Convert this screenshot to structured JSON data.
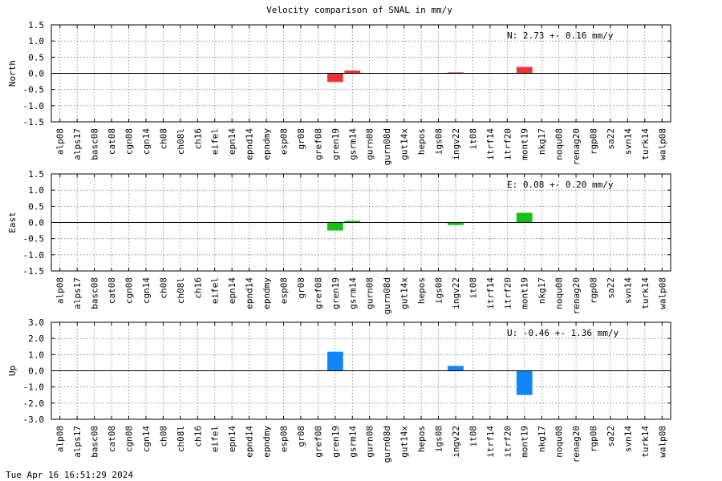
{
  "title": "Velocity comparison of SNAL in mm/y",
  "footer": "Tue Apr 16 16:51:29 2024",
  "chart_data": [
    {
      "type": "bar",
      "ylabel": "North",
      "annotation": "N:   2.73 +-  0.16 mm/y",
      "ylim": [
        -1.5,
        1.5
      ],
      "yticks": [
        "1.5",
        "1.0",
        "0.5",
        "0.0",
        "-0.5",
        "-1.0",
        "-1.5"
      ],
      "grid": true,
      "color": "#e8353a",
      "categories": [
        "alp08",
        "alps17",
        "basc08",
        "cat08",
        "cgn08",
        "cgn14",
        "ch08",
        "ch08l",
        "ch16",
        "eifel",
        "epn14",
        "epnd14",
        "epndmy",
        "esp08",
        "gr08",
        "gref08",
        "gren19",
        "gsrm14",
        "gurn08",
        "gurn08d",
        "gut14x",
        "hepos",
        "igs08",
        "ingv22",
        "it08",
        "itrf14",
        "itrf20",
        "mont19",
        "nkg17",
        "noqu08",
        "renag20",
        "rgp08",
        "sa22",
        "svn14",
        "turk14",
        "walp08"
      ],
      "values": [
        0,
        0,
        0,
        0,
        0,
        0,
        0,
        0,
        0,
        0,
        0,
        0,
        0,
        0,
        0,
        0,
        -0.27,
        0.09,
        0,
        0,
        0,
        0,
        0,
        0.03,
        0,
        0,
        0,
        0.2,
        0,
        0,
        0,
        0,
        0,
        0,
        0,
        0
      ]
    },
    {
      "type": "bar",
      "ylabel": "East",
      "annotation": "E:   0.08 +-  0.20 mm/y",
      "ylim": [
        -1.5,
        1.5
      ],
      "yticks": [
        "1.5",
        "1.0",
        "0.5",
        "0.0",
        "-0.5",
        "-1.0",
        "-1.5"
      ],
      "grid": true,
      "color": "#16c116",
      "categories": [
        "alp08",
        "alps17",
        "basc08",
        "cat08",
        "cgn08",
        "cgn14",
        "ch08",
        "ch08l",
        "ch16",
        "eifel",
        "epn14",
        "epnd14",
        "epndmy",
        "esp08",
        "gr08",
        "gref08",
        "gren19",
        "gsrm14",
        "gurn08",
        "gurn08d",
        "gut14x",
        "hepos",
        "igs08",
        "ingv22",
        "it08",
        "itrf14",
        "itrf20",
        "mont19",
        "nkg17",
        "noqu08",
        "renag20",
        "rgp08",
        "sa22",
        "svn14",
        "turk14",
        "walp08"
      ],
      "values": [
        0,
        0,
        0,
        0,
        0,
        0,
        0,
        0,
        0,
        0,
        0,
        0,
        0,
        0,
        0,
        0,
        -0.25,
        0.05,
        0,
        0,
        0,
        0,
        0,
        -0.08,
        0,
        0,
        0,
        0.3,
        0,
        0,
        0,
        0,
        0,
        0,
        0,
        0
      ]
    },
    {
      "type": "bar",
      "ylabel": "Up",
      "annotation": "U:  -0.46 +-  1.36 mm/y",
      "ylim": [
        -3.0,
        3.0
      ],
      "yticks": [
        "3.0",
        "2.0",
        "1.0",
        "0.0",
        "-1.0",
        "-2.0",
        "-3.0"
      ],
      "grid": true,
      "color": "#1187f5",
      "categories": [
        "alp08",
        "alps17",
        "basc08",
        "cat08",
        "cgn08",
        "cgn14",
        "ch08",
        "ch08l",
        "ch16",
        "eifel",
        "epn14",
        "epnd14",
        "epndmy",
        "esp08",
        "gr08",
        "gref08",
        "gren19",
        "gsrm14",
        "gurn08",
        "gurn08d",
        "gut14x",
        "hepos",
        "igs08",
        "ingv22",
        "it08",
        "itrf14",
        "itrf20",
        "mont19",
        "nkg17",
        "noqu08",
        "renag20",
        "rgp08",
        "sa22",
        "svn14",
        "turk14",
        "walp08"
      ],
      "values": [
        0,
        0,
        0,
        0,
        0,
        0,
        0,
        0,
        0,
        0,
        0,
        0,
        0,
        0,
        0,
        0,
        1.18,
        0,
        0,
        0,
        0,
        0,
        0,
        0.3,
        0,
        0,
        0,
        -1.5,
        0,
        0,
        0,
        0,
        0,
        0,
        0,
        0
      ]
    }
  ]
}
